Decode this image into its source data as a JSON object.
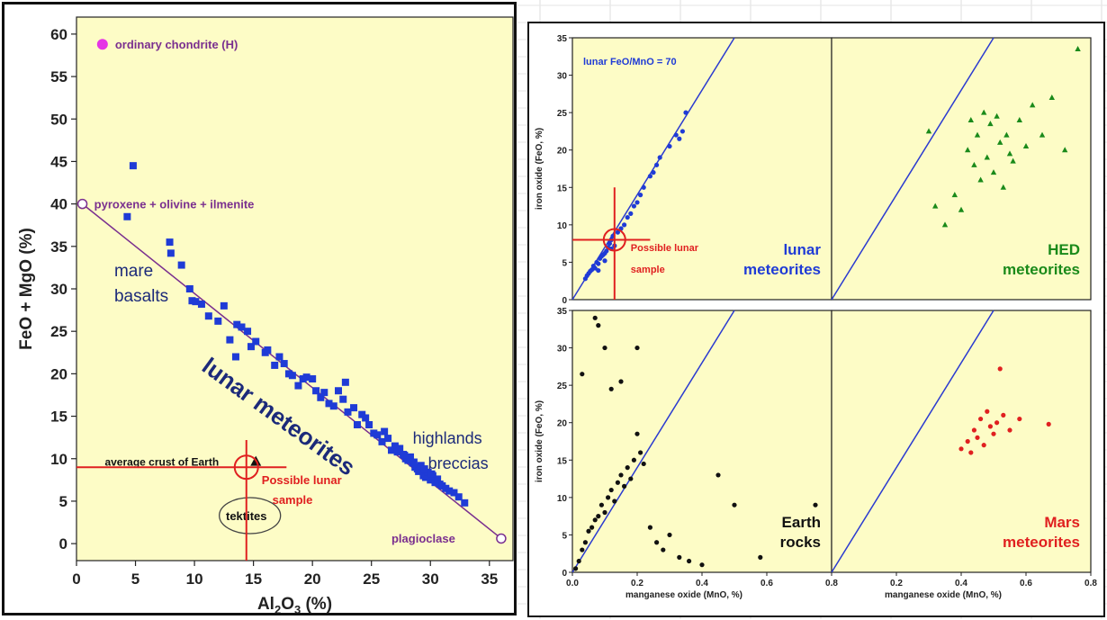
{
  "left_chart": {
    "ylabel": "FeO + MgO  (%)",
    "xlabel_main": "Al",
    "xlabel_sub1": "2",
    "xlabel_mid": "O",
    "xlabel_sub2": "3",
    "xlabel_tail": "  (%)",
    "annotations": {
      "chondrite": "ordinary chondrite (H)",
      "pyroxene": "pyroxene + olivine + ilmenite",
      "mare1": "mare",
      "mare2": "basalts",
      "lunar_met": "lunar meteorites",
      "highlands1": "highlands",
      "highlands2": "breccias",
      "crust": "average crust of Earth",
      "tektites": "tektites",
      "possible1": "Possible lunar",
      "possible2": "sample",
      "plagioclase": "plagioclase"
    }
  },
  "right_chart": {
    "ylabel": "iron oxide  (FeO, %)",
    "xlabel": "manganese oxide  (MnO, %)",
    "ratio_label": "lunar FeO/MnO = 70",
    "possible1": "Possible lunar",
    "possible2": "sample",
    "panels": {
      "lunar": [
        "lunar",
        "meteorites"
      ],
      "hed": [
        "HED",
        "meteorites"
      ],
      "earth": [
        "Earth",
        "rocks"
      ],
      "mars": [
        "Mars",
        "meteorites"
      ]
    }
  },
  "colors": {
    "panel_bg": "#fdfcc6",
    "blue": "#1f3bd6",
    "purple": "#7a2f8f",
    "navy": "#1c2a7a",
    "green": "#1a8a1a",
    "red": "#e02020",
    "magenta": "#e535e5"
  },
  "chart_data": [
    {
      "type": "scatter",
      "title": "",
      "xlabel": "Al2O3 (%)",
      "ylabel": "FeO + MgO (%)",
      "xlim": [
        0,
        37
      ],
      "ylim": [
        -2,
        62
      ],
      "xticks": [
        0,
        5,
        10,
        15,
        20,
        25,
        30,
        35
      ],
      "yticks": [
        0,
        5,
        10,
        15,
        20,
        25,
        30,
        35,
        40,
        45,
        50,
        55,
        60
      ],
      "mixing_line": {
        "from": [
          0.5,
          40
        ],
        "to": [
          36,
          0.6
        ]
      },
      "special_points": [
        {
          "label": "ordinary chondrite (H)",
          "x": 2.2,
          "y": 58.8
        },
        {
          "label": "average crust of Earth",
          "x": 15.2,
          "y": 9.7
        },
        {
          "label": "Possible lunar sample",
          "x": 14.4,
          "y": 9.0
        }
      ],
      "series": [
        {
          "name": "lunar meteorites",
          "x": [
            4.8,
            4.3,
            7.9,
            8.0,
            8.9,
            9.6,
            9.8,
            10.1,
            10.6,
            11.2,
            12.0,
            12.5,
            13.0,
            13.5,
            13.6,
            14.0,
            14.5,
            14.8,
            15.2,
            16.0,
            16.2,
            16.8,
            17.2,
            17.6,
            18.0,
            18.3,
            18.8,
            19.2,
            19.5,
            20.0,
            20.3,
            20.7,
            21.0,
            21.4,
            21.8,
            22.2,
            22.6,
            22.8,
            23.0,
            23.5,
            23.8,
            24.2,
            24.5,
            24.8,
            25.2,
            25.5,
            25.9,
            26.1,
            26.4,
            26.7,
            27.0,
            27.2,
            27.4,
            27.7,
            27.9,
            28.1,
            28.3,
            28.5,
            28.7,
            28.9,
            29.0,
            29.2,
            29.4,
            29.6,
            29.8,
            30.0,
            30.2,
            30.4,
            30.6,
            30.8,
            31.0,
            31.3,
            31.6,
            32.0,
            32.4,
            32.9,
            29.5,
            30.1,
            28.6,
            27.8
          ],
          "y": [
            44.5,
            38.5,
            35.5,
            34.2,
            32.8,
            30.0,
            28.6,
            28.5,
            28.2,
            26.8,
            26.2,
            28.0,
            24.0,
            22.0,
            25.8,
            25.5,
            25.0,
            23.2,
            23.8,
            22.5,
            22.8,
            21.0,
            22.0,
            21.2,
            20.0,
            19.8,
            18.6,
            19.4,
            19.6,
            19.4,
            18.0,
            17.2,
            17.8,
            16.5,
            16.2,
            18.0,
            17.0,
            19.0,
            15.5,
            16.0,
            14.0,
            15.2,
            14.8,
            14.0,
            13.0,
            12.8,
            12.0,
            13.2,
            12.4,
            11.0,
            11.5,
            10.8,
            11.2,
            10.5,
            10.0,
            9.8,
            10.2,
            9.5,
            9.0,
            8.8,
            8.5,
            9.2,
            8.0,
            7.8,
            8.4,
            7.5,
            8.0,
            7.2,
            7.6,
            7.0,
            6.8,
            6.5,
            6.2,
            6.0,
            5.5,
            4.8,
            8.8,
            8.2,
            9.6,
            10.4
          ]
        }
      ]
    },
    {
      "type": "scatter",
      "title": "",
      "xlabel": "manganese oxide (MnO, %)",
      "ylabel": "iron oxide (FeO, %)",
      "xlim": [
        0,
        0.8
      ],
      "ylim": [
        0,
        35
      ],
      "xticks": [
        0.0,
        0.2,
        0.4,
        0.6,
        0.8
      ],
      "yticks": [
        0,
        5,
        10,
        15,
        20,
        25,
        30,
        35
      ],
      "reference_line_ratio": 70,
      "panels": [
        {
          "name": "lunar meteorites",
          "x": [
            0.04,
            0.045,
            0.05,
            0.055,
            0.06,
            0.065,
            0.07,
            0.075,
            0.08,
            0.085,
            0.09,
            0.095,
            0.1,
            0.105,
            0.11,
            0.115,
            0.12,
            0.125,
            0.13,
            0.14,
            0.15,
            0.16,
            0.17,
            0.18,
            0.19,
            0.2,
            0.21,
            0.22,
            0.24,
            0.25,
            0.26,
            0.27,
            0.3,
            0.32,
            0.33,
            0.34,
            0.35,
            0.1,
            0.12,
            0.08
          ],
          "y": [
            2.8,
            3.2,
            3.5,
            3.8,
            4.0,
            4.5,
            4.2,
            5.0,
            4.8,
            5.5,
            5.8,
            6.0,
            6.2,
            6.5,
            7.0,
            7.5,
            8.0,
            8.5,
            7.2,
            9.0,
            9.5,
            10.0,
            11.0,
            11.5,
            12.5,
            13.0,
            14.0,
            15.0,
            16.5,
            17.0,
            18.0,
            19.0,
            20.5,
            22.0,
            21.5,
            22.5,
            25.0,
            5.2,
            6.8,
            3.9
          ]
        },
        {
          "name": "HED meteorites",
          "x": [
            0.3,
            0.32,
            0.35,
            0.38,
            0.4,
            0.42,
            0.43,
            0.44,
            0.45,
            0.46,
            0.47,
            0.48,
            0.49,
            0.5,
            0.51,
            0.52,
            0.53,
            0.54,
            0.55,
            0.56,
            0.58,
            0.6,
            0.62,
            0.65,
            0.68,
            0.72,
            0.76
          ],
          "y": [
            22.5,
            12.5,
            10.0,
            14.0,
            12.0,
            20.0,
            24.0,
            18.0,
            22.0,
            16.0,
            25.0,
            19.0,
            23.5,
            17.0,
            24.5,
            21.0,
            15.0,
            22.0,
            19.5,
            18.5,
            24.0,
            20.5,
            26.0,
            22.0,
            27.0,
            20.0,
            33.5
          ]
        },
        {
          "name": "Earth rocks",
          "x": [
            0.01,
            0.02,
            0.03,
            0.04,
            0.05,
            0.06,
            0.07,
            0.08,
            0.09,
            0.1,
            0.11,
            0.12,
            0.13,
            0.14,
            0.15,
            0.16,
            0.17,
            0.18,
            0.19,
            0.2,
            0.21,
            0.22,
            0.24,
            0.26,
            0.28,
            0.3,
            0.33,
            0.36,
            0.4,
            0.45,
            0.5,
            0.58,
            0.75,
            0.08,
            0.07,
            0.1,
            0.15,
            0.2,
            0.03,
            0.12
          ],
          "y": [
            0.5,
            1.5,
            3.0,
            4.0,
            5.5,
            6.0,
            7.0,
            7.5,
            9.0,
            8.0,
            10.0,
            11.0,
            9.5,
            12.0,
            13.0,
            11.5,
            14.0,
            12.5,
            15.0,
            18.5,
            16.0,
            14.5,
            6.0,
            4.0,
            3.0,
            5.0,
            2.0,
            1.5,
            1.0,
            13.0,
            9.0,
            2.0,
            9.0,
            33.0,
            34.0,
            30.0,
            25.5,
            30.0,
            26.5,
            24.5
          ]
        },
        {
          "name": "Mars meteorites",
          "x": [
            0.4,
            0.42,
            0.43,
            0.44,
            0.45,
            0.46,
            0.47,
            0.48,
            0.49,
            0.5,
            0.51,
            0.52,
            0.53,
            0.55,
            0.58,
            0.67
          ],
          "y": [
            16.5,
            17.5,
            16.0,
            19.0,
            18.0,
            20.5,
            17.0,
            21.5,
            19.5,
            18.5,
            20.0,
            27.2,
            21.0,
            19.0,
            20.5,
            19.8
          ]
        }
      ]
    }
  ]
}
